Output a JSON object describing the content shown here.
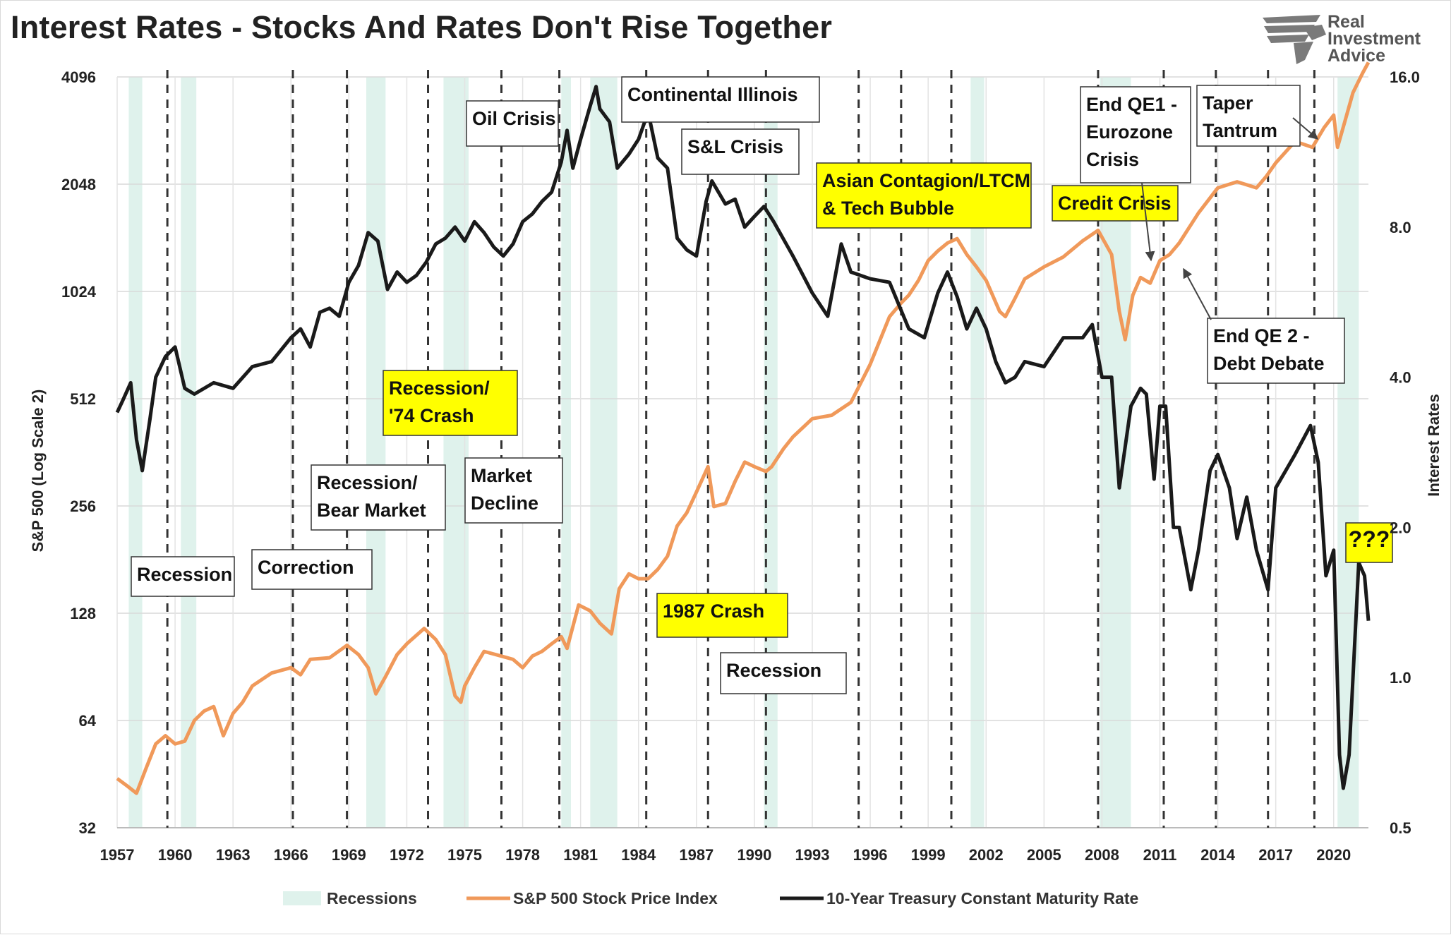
{
  "title": "Interest Rates - Stocks And Rates Don't Rise Together",
  "logo": {
    "line1": "Real",
    "line2": "Investment",
    "line3": "Advice"
  },
  "colors": {
    "sp500": "#f0995a",
    "rates": "#1a1a1a",
    "recession": "#dff2ec",
    "highlight": "#ffff00",
    "question": "#e01010"
  },
  "chart_data": {
    "type": "line",
    "title": "Interest Rates - Stocks And Rates Don't Rise Together",
    "x_ticks": [
      "1957",
      "1960",
      "1963",
      "1966",
      "1969",
      "1972",
      "1975",
      "1978",
      "1981",
      "1984",
      "1987",
      "1990",
      "1993",
      "1996",
      "1999",
      "2002",
      "2005",
      "2008",
      "2011",
      "2014",
      "2017",
      "2020"
    ],
    "x_range": [
      1957,
      2021.8
    ],
    "left_axis": {
      "label": "S&P 500 (Log Scale 2)",
      "scale": "log2",
      "ticks": [
        "4096",
        "2048",
        "1024",
        "512",
        "256",
        "128",
        "64",
        "32"
      ],
      "range": [
        32,
        4096
      ]
    },
    "right_axis": {
      "label": "Interest Rates",
      "scale": "log2",
      "ticks": [
        "16.0",
        "8.0",
        "4.0",
        "2.0",
        "1.0",
        "0.5"
      ],
      "range": [
        0.5,
        16
      ]
    },
    "recessions": [
      [
        1957.6,
        1958.3
      ],
      [
        1960.3,
        1961.1
      ],
      [
        1969.9,
        1970.9
      ],
      [
        1973.9,
        1975.2
      ],
      [
        1980.0,
        1980.5
      ],
      [
        1981.5,
        1982.9
      ],
      [
        1990.5,
        1991.2
      ],
      [
        2001.2,
        2001.9
      ],
      [
        2007.9,
        2009.5
      ],
      [
        2020.2,
        2021.3
      ]
    ],
    "event_lines": [
      1959.6,
      1966.1,
      1968.9,
      1973.1,
      1976.9,
      1979.9,
      1984.4,
      1987.6,
      1990.6,
      1995.4,
      1997.6,
      2000.2,
      2007.8,
      2011.2,
      2013.9,
      2016.6,
      2019.0
    ],
    "series": [
      {
        "name": "S&P 500 Stock Price Index",
        "axis": "left",
        "x": [
          1957.0,
          1957.5,
          1958.0,
          1958.5,
          1959.0,
          1959.5,
          1960.0,
          1960.5,
          1961.0,
          1961.5,
          1962.0,
          1962.5,
          1963.0,
          1963.5,
          1964.0,
          1965.0,
          1966.0,
          1966.5,
          1967.0,
          1968.0,
          1968.9,
          1969.5,
          1970.0,
          1970.4,
          1970.9,
          1971.5,
          1972.0,
          1972.9,
          1973.5,
          1974.0,
          1974.5,
          1974.8,
          1975.0,
          1975.5,
          1976.0,
          1976.9,
          1977.5,
          1978.0,
          1978.5,
          1979.0,
          1979.5,
          1980.0,
          1980.3,
          1980.9,
          1981.5,
          1982.0,
          1982.6,
          1983.0,
          1983.5,
          1984.0,
          1984.5,
          1985.0,
          1985.5,
          1986.0,
          1986.5,
          1987.0,
          1987.6,
          1987.9,
          1988.5,
          1989.0,
          1989.5,
          1990.0,
          1990.6,
          1990.9,
          1991.5,
          1992.0,
          1993.0,
          1994.0,
          1995.0,
          1996.0,
          1997.0,
          1997.6,
          1998.0,
          1998.5,
          1999.0,
          1999.5,
          2000.0,
          2000.5,
          2001.0,
          2001.5,
          2002.0,
          2002.7,
          2003.0,
          2003.5,
          2004.0,
          2005.0,
          2006.0,
          2007.0,
          2007.8,
          2008.5,
          2008.9,
          2009.2,
          2009.6,
          2010.0,
          2010.5,
          2011.0,
          2011.5,
          2012.0,
          2013.0,
          2014.0,
          2015.0,
          2016.0,
          2016.5,
          2017.0,
          2018.0,
          2018.9,
          2019.5,
          2020.0,
          2020.2,
          2020.6,
          2021.0,
          2021.5,
          2021.8
        ],
        "values": [
          44,
          42,
          40,
          47,
          55,
          58,
          55,
          56,
          64,
          68,
          70,
          58,
          67,
          72,
          80,
          87,
          90,
          86,
          95,
          96,
          104,
          98,
          90,
          76,
          85,
          98,
          105,
          116,
          108,
          98,
          75,
          72,
          80,
          90,
          100,
          97,
          95,
          90,
          97,
          100,
          105,
          110,
          102,
          135,
          130,
          120,
          112,
          150,
          165,
          160,
          160,
          170,
          185,
          225,
          245,
          280,
          330,
          255,
          260,
          300,
          340,
          330,
          320,
          330,
          370,
          400,
          450,
          460,
          500,
          640,
          870,
          950,
          1000,
          1100,
          1250,
          1330,
          1400,
          1440,
          1300,
          1200,
          1100,
          900,
          870,
          980,
          1110,
          1200,
          1280,
          1420,
          1520,
          1300,
          900,
          750,
          1000,
          1120,
          1080,
          1250,
          1300,
          1400,
          1700,
          2000,
          2080,
          2000,
          2150,
          2350,
          2700,
          2600,
          2950,
          3200,
          2600,
          3100,
          3700,
          4200,
          4500
        ]
      },
      {
        "name": "10-Year Treasury Constant Maturity Rate",
        "axis": "right",
        "x": [
          1957.0,
          1957.3,
          1957.7,
          1958.0,
          1958.3,
          1958.7,
          1959.0,
          1959.5,
          1960.0,
          1960.5,
          1961.0,
          1962.0,
          1963.0,
          1964.0,
          1965.0,
          1966.0,
          1966.5,
          1967.0,
          1967.5,
          1968.0,
          1968.5,
          1969.0,
          1969.5,
          1970.0,
          1970.5,
          1971.0,
          1971.5,
          1972.0,
          1972.5,
          1973.0,
          1973.5,
          1974.0,
          1974.5,
          1975.0,
          1975.5,
          1976.0,
          1976.5,
          1977.0,
          1977.5,
          1978.0,
          1978.5,
          1979.0,
          1979.5,
          1980.0,
          1980.3,
          1980.6,
          1981.0,
          1981.5,
          1981.8,
          1982.0,
          1982.5,
          1982.9,
          1983.5,
          1984.0,
          1984.5,
          1985.0,
          1985.5,
          1986.0,
          1986.5,
          1987.0,
          1987.5,
          1987.8,
          1988.5,
          1989.0,
          1989.5,
          1990.0,
          1990.5,
          1991.0,
          1992.0,
          1993.0,
          1993.8,
          1994.5,
          1995.0,
          1996.0,
          1997.0,
          1998.0,
          1998.8,
          1999.5,
          2000.0,
          2000.5,
          2001.0,
          2001.5,
          2002.0,
          2002.5,
          2003.0,
          2003.5,
          2004.0,
          2005.0,
          2006.0,
          2007.0,
          2007.5,
          2008.0,
          2008.5,
          2008.9,
          2009.2,
          2009.5,
          2010.0,
          2010.3,
          2010.7,
          2011.0,
          2011.3,
          2011.7,
          2012.0,
          2012.6,
          2013.0,
          2013.6,
          2014.0,
          2014.6,
          2015.0,
          2015.5,
          2016.0,
          2016.6,
          2017.0,
          2018.0,
          2018.8,
          2019.2,
          2019.6,
          2020.0,
          2020.3,
          2020.5,
          2020.8,
          2021.0,
          2021.3,
          2021.6,
          2021.8
        ],
        "values": [
          3.4,
          3.6,
          3.9,
          3.0,
          2.6,
          3.3,
          4.0,
          4.4,
          4.6,
          3.8,
          3.7,
          3.9,
          3.8,
          4.2,
          4.3,
          4.8,
          5.0,
          4.6,
          5.4,
          5.5,
          5.3,
          6.2,
          6.7,
          7.8,
          7.5,
          6.0,
          6.5,
          6.2,
          6.4,
          6.8,
          7.4,
          7.6,
          8.0,
          7.5,
          8.2,
          7.8,
          7.3,
          7.0,
          7.4,
          8.2,
          8.5,
          9.0,
          9.4,
          10.8,
          12.5,
          10.5,
          12.0,
          14.0,
          15.3,
          13.8,
          13.0,
          10.5,
          11.2,
          12.0,
          13.6,
          11.0,
          10.5,
          7.6,
          7.2,
          7.0,
          9.0,
          9.9,
          8.9,
          9.1,
          8.0,
          8.4,
          8.8,
          8.2,
          7.0,
          5.9,
          5.3,
          7.4,
          6.5,
          6.3,
          6.2,
          5.0,
          4.8,
          5.9,
          6.5,
          5.8,
          5.0,
          5.5,
          5.0,
          4.3,
          3.9,
          4.0,
          4.3,
          4.2,
          4.8,
          4.8,
          5.1,
          4.0,
          4.0,
          2.4,
          2.9,
          3.5,
          3.8,
          3.7,
          2.5,
          3.5,
          3.5,
          2.0,
          2.0,
          1.5,
          1.8,
          2.6,
          2.8,
          2.4,
          1.9,
          2.3,
          1.8,
          1.5,
          2.4,
          2.8,
          3.2,
          2.7,
          1.6,
          1.8,
          0.7,
          0.6,
          0.7,
          1.0,
          1.7,
          1.6,
          1.3
        ]
      }
    ],
    "annotations": [
      {
        "text": [
          "Recession"
        ],
        "x": 1959.6,
        "highlight": false
      },
      {
        "text": [
          "Correction"
        ],
        "x": 1966.1,
        "highlight": false
      },
      {
        "text": [
          "Recession/",
          "Bear Market"
        ],
        "x": 1968.9,
        "highlight": false
      },
      {
        "text": [
          "Recession/",
          "'74 Crash"
        ],
        "x": 1973.1,
        "highlight": true
      },
      {
        "text": [
          "Market",
          "Decline"
        ],
        "x": 1976.9,
        "highlight": false
      },
      {
        "text": [
          "Oil Crisis"
        ],
        "x": 1979.9,
        "highlight": false
      },
      {
        "text": [
          "Continental Illinois"
        ],
        "x": 1984.4,
        "highlight": false
      },
      {
        "text": [
          "1987 Crash"
        ],
        "x": 1987.6,
        "highlight": true
      },
      {
        "text": [
          "S&L Crisis"
        ],
        "x": 1987.6,
        "highlight": false
      },
      {
        "text": [
          "Recession"
        ],
        "x": 1990.6,
        "highlight": false
      },
      {
        "text": [
          "Asian Contagion/LTCM",
          "& Tech Bubble"
        ],
        "x": 1995.4,
        "highlight": true
      },
      {
        "text": [
          "Credit Crisis"
        ],
        "x": 2007.8,
        "highlight": true
      },
      {
        "text": [
          "End QE1 -",
          "Eurozone",
          "Crisis"
        ],
        "x": 2011.2,
        "highlight": false
      },
      {
        "text": [
          "Taper",
          "Tantrum"
        ],
        "x": 2013.9,
        "highlight": false
      },
      {
        "text": [
          "End QE 2 -",
          "Debt Debate"
        ],
        "x": 2011.2,
        "highlight": false
      },
      {
        "text": [
          "???"
        ],
        "x": 2020.3,
        "highlight": true
      }
    ],
    "legend": [
      "Recessions",
      "S&P 500 Stock Price Index",
      "10-Year Treasury Constant Maturity Rate"
    ],
    "legend_position": "bottom",
    "grid": true
  }
}
